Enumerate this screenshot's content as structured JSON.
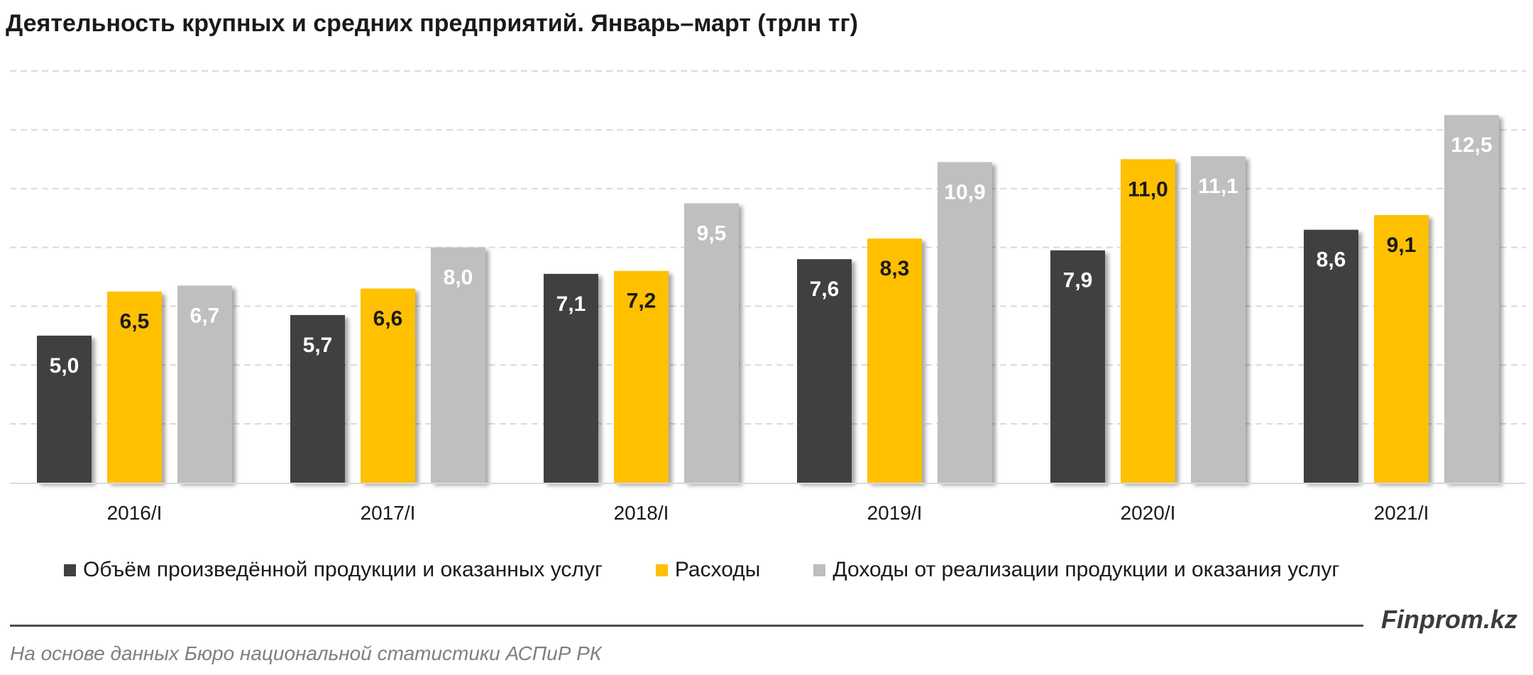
{
  "title": "Деятельность крупных и средних предприятий. Январь–март (трлн тг)",
  "brand": "Finprom.kz",
  "source": "На основе данных  Бюро национальной  статистики АСПиР РК",
  "chart_data": {
    "type": "bar",
    "title": "Деятельность крупных и средних предприятий. Январь–март (трлн тг)",
    "categories": [
      "2016/I",
      "2017/I",
      "2018/I",
      "2019/I",
      "2020/I",
      "2021/I"
    ],
    "series": [
      {
        "name": "Объём произведённой продукции и оказанных услуг",
        "color": "#404040",
        "values": [
          5.0,
          5.7,
          7.1,
          7.6,
          7.9,
          8.6
        ],
        "labels": [
          "5,0",
          "5,7",
          "7,1",
          "7,6",
          "7,9",
          "8,6"
        ]
      },
      {
        "name": "Расходы",
        "color": "#ffc000",
        "values": [
          6.5,
          6.6,
          7.2,
          8.3,
          11.0,
          9.1
        ],
        "labels": [
          "6,5",
          "6,6",
          "7,2",
          "8,3",
          "11,0",
          "9,1"
        ]
      },
      {
        "name": "Доходы от реализации продукции и оказания услуг",
        "color": "#bfbfbf",
        "values": [
          6.7,
          8.0,
          9.5,
          10.9,
          11.1,
          12.5
        ],
        "labels": [
          "6,7",
          "8,0",
          "9,5",
          "10,9",
          "11,1",
          "12,5"
        ]
      }
    ],
    "ylim": [
      0,
      14
    ],
    "grid": true,
    "gridline_step": 2,
    "legend_position": "bottom",
    "label_colors": [
      "#ffffff",
      "#1a1a1a",
      "#ffffff"
    ]
  }
}
